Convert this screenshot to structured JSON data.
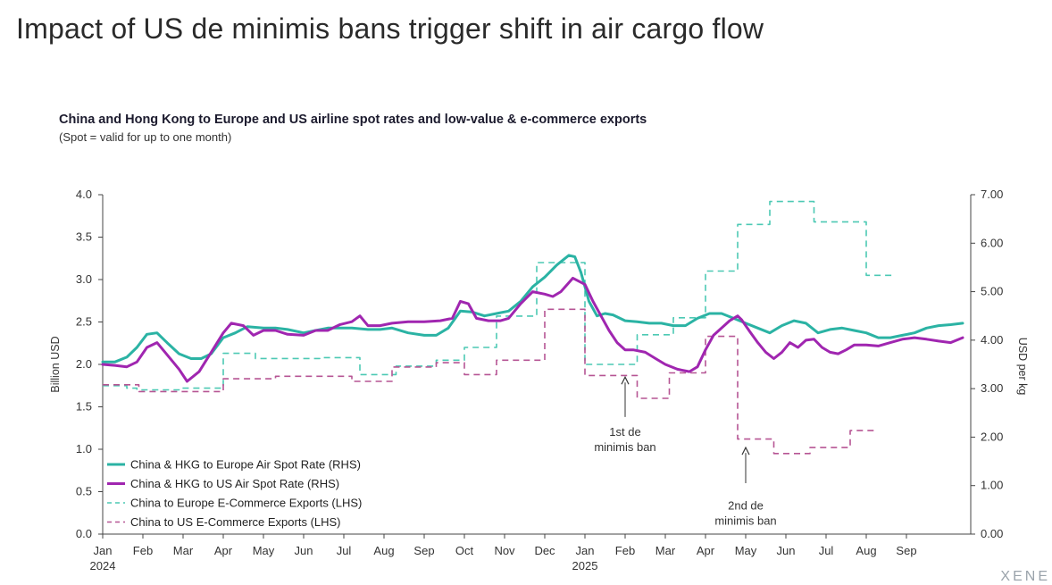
{
  "page_title": "Impact of US de minimis bans trigger shift in air cargo flow",
  "brand": "XENE",
  "chart_data": {
    "type": "line",
    "title": "China and Hong Kong to Europe and US airline spot rates and low-value & e-commerce exports",
    "subtitle": "(Spot = valid for up to one month)",
    "ylabel": "Billion USD",
    "y2label": "USD per kg",
    "ylim": [
      0,
      4.0
    ],
    "y2lim": [
      0,
      7.0
    ],
    "yticks": [
      "0.0",
      "0.5",
      "1.0",
      "1.5",
      "2.0",
      "2.5",
      "3.0",
      "3.5",
      "4.0"
    ],
    "y2ticks": [
      "0.00",
      "1.00",
      "2.00",
      "3.00",
      "4.00",
      "5.00",
      "6.00",
      "7.00"
    ],
    "xlim": [
      0,
      21.6
    ],
    "x_ticks": [
      {
        "label": "Jan",
        "year": "2024"
      },
      {
        "label": "Feb"
      },
      {
        "label": "Mar"
      },
      {
        "label": "Apr"
      },
      {
        "label": "May"
      },
      {
        "label": "Jun"
      },
      {
        "label": "Jul"
      },
      {
        "label": "Aug"
      },
      {
        "label": "Sep"
      },
      {
        "label": "Oct"
      },
      {
        "label": "Nov"
      },
      {
        "label": "Dec"
      },
      {
        "label": "Jan",
        "year": "2025"
      },
      {
        "label": "Feb"
      },
      {
        "label": "Mar"
      },
      {
        "label": "Apr"
      },
      {
        "label": "May"
      },
      {
        "label": "Jun"
      },
      {
        "label": "Jul"
      },
      {
        "label": "Aug"
      },
      {
        "label": "Sep"
      }
    ],
    "series": [
      {
        "name": "China & HKG to Europe Air Spot Rate (RHS)",
        "axis": "right",
        "color": "#2bb3a4",
        "style": "solid",
        "width": 3,
        "points": [
          [
            0,
            3.55
          ],
          [
            0.3,
            3.55
          ],
          [
            0.6,
            3.65
          ],
          [
            0.85,
            3.85
          ],
          [
            1.1,
            4.12
          ],
          [
            1.35,
            4.15
          ],
          [
            1.6,
            3.95
          ],
          [
            1.9,
            3.72
          ],
          [
            2.2,
            3.62
          ],
          [
            2.45,
            3.62
          ],
          [
            2.7,
            3.72
          ],
          [
            3,
            4.05
          ],
          [
            3.3,
            4.15
          ],
          [
            3.6,
            4.28
          ],
          [
            4,
            4.25
          ],
          [
            4.3,
            4.25
          ],
          [
            4.6,
            4.22
          ],
          [
            5,
            4.15
          ],
          [
            5.3,
            4.2
          ],
          [
            5.6,
            4.25
          ],
          [
            5.9,
            4.25
          ],
          [
            6.2,
            4.25
          ],
          [
            6.6,
            4.22
          ],
          [
            6.9,
            4.22
          ],
          [
            7.2,
            4.25
          ],
          [
            7.6,
            4.15
          ],
          [
            8,
            4.1
          ],
          [
            8.3,
            4.1
          ],
          [
            8.6,
            4.25
          ],
          [
            8.9,
            4.6
          ],
          [
            9.2,
            4.58
          ],
          [
            9.5,
            4.5
          ],
          [
            9.8,
            4.55
          ],
          [
            10.1,
            4.6
          ],
          [
            10.4,
            4.8
          ],
          [
            10.7,
            5.1
          ],
          [
            11,
            5.3
          ],
          [
            11.3,
            5.55
          ],
          [
            11.6,
            5.75
          ],
          [
            11.75,
            5.72
          ],
          [
            11.9,
            5.4
          ],
          [
            12.1,
            4.8
          ],
          [
            12.3,
            4.5
          ],
          [
            12.5,
            4.55
          ],
          [
            12.7,
            4.52
          ],
          [
            13,
            4.4
          ],
          [
            13.3,
            4.38
          ],
          [
            13.6,
            4.35
          ],
          [
            13.9,
            4.35
          ],
          [
            14.2,
            4.3
          ],
          [
            14.5,
            4.3
          ],
          [
            14.8,
            4.45
          ],
          [
            15.1,
            4.55
          ],
          [
            15.4,
            4.55
          ],
          [
            15.7,
            4.45
          ],
          [
            16,
            4.35
          ],
          [
            16.3,
            4.25
          ],
          [
            16.6,
            4.15
          ],
          [
            16.9,
            4.3
          ],
          [
            17.2,
            4.4
          ],
          [
            17.5,
            4.35
          ],
          [
            17.8,
            4.15
          ],
          [
            18.1,
            4.22
          ],
          [
            18.4,
            4.25
          ],
          [
            18.7,
            4.2
          ],
          [
            19,
            4.15
          ],
          [
            19.3,
            4.05
          ],
          [
            19.6,
            4.05
          ],
          [
            19.9,
            4.1
          ],
          [
            20.2,
            4.15
          ],
          [
            20.5,
            4.25
          ],
          [
            20.8,
            4.3
          ],
          [
            21.1,
            4.32
          ],
          [
            21.4,
            4.35
          ]
        ]
      },
      {
        "name": "China & HKG to US Air Spot Rate (RHS)",
        "axis": "right",
        "color": "#a026b0",
        "style": "solid",
        "width": 3,
        "points": [
          [
            0,
            3.5
          ],
          [
            0.3,
            3.48
          ],
          [
            0.6,
            3.45
          ],
          [
            0.85,
            3.55
          ],
          [
            1.1,
            3.85
          ],
          [
            1.35,
            3.95
          ],
          [
            1.6,
            3.7
          ],
          [
            1.9,
            3.4
          ],
          [
            2.1,
            3.15
          ],
          [
            2.4,
            3.35
          ],
          [
            2.7,
            3.75
          ],
          [
            3,
            4.15
          ],
          [
            3.2,
            4.35
          ],
          [
            3.5,
            4.3
          ],
          [
            3.75,
            4.1
          ],
          [
            4,
            4.2
          ],
          [
            4.3,
            4.2
          ],
          [
            4.6,
            4.12
          ],
          [
            5,
            4.1
          ],
          [
            5.3,
            4.2
          ],
          [
            5.6,
            4.2
          ],
          [
            5.9,
            4.32
          ],
          [
            6.2,
            4.38
          ],
          [
            6.4,
            4.5
          ],
          [
            6.6,
            4.3
          ],
          [
            6.9,
            4.3
          ],
          [
            7.2,
            4.35
          ],
          [
            7.6,
            4.38
          ],
          [
            8,
            4.38
          ],
          [
            8.4,
            4.4
          ],
          [
            8.7,
            4.45
          ],
          [
            8.9,
            4.8
          ],
          [
            9.1,
            4.75
          ],
          [
            9.3,
            4.45
          ],
          [
            9.6,
            4.4
          ],
          [
            9.9,
            4.4
          ],
          [
            10.1,
            4.45
          ],
          [
            10.4,
            4.75
          ],
          [
            10.7,
            5.0
          ],
          [
            11,
            4.95
          ],
          [
            11.2,
            4.9
          ],
          [
            11.4,
            5.0
          ],
          [
            11.7,
            5.28
          ],
          [
            12,
            5.15
          ],
          [
            12.2,
            4.8
          ],
          [
            12.4,
            4.5
          ],
          [
            12.6,
            4.2
          ],
          [
            12.8,
            3.95
          ],
          [
            13,
            3.8
          ],
          [
            13.2,
            3.8
          ],
          [
            13.5,
            3.75
          ],
          [
            13.8,
            3.6
          ],
          [
            14,
            3.5
          ],
          [
            14.3,
            3.4
          ],
          [
            14.6,
            3.35
          ],
          [
            14.8,
            3.45
          ],
          [
            15,
            3.8
          ],
          [
            15.2,
            4.1
          ],
          [
            15.4,
            4.25
          ],
          [
            15.6,
            4.4
          ],
          [
            15.8,
            4.5
          ],
          [
            15.9,
            4.42
          ],
          [
            16.1,
            4.18
          ],
          [
            16.3,
            3.95
          ],
          [
            16.5,
            3.75
          ],
          [
            16.7,
            3.62
          ],
          [
            16.9,
            3.75
          ],
          [
            17.1,
            3.95
          ],
          [
            17.3,
            3.85
          ],
          [
            17.5,
            4.0
          ],
          [
            17.7,
            4.02
          ],
          [
            17.9,
            3.85
          ],
          [
            18.1,
            3.75
          ],
          [
            18.3,
            3.72
          ],
          [
            18.5,
            3.8
          ],
          [
            18.7,
            3.9
          ],
          [
            19,
            3.9
          ],
          [
            19.3,
            3.88
          ],
          [
            19.6,
            3.95
          ],
          [
            19.9,
            4.02
          ],
          [
            20.2,
            4.05
          ],
          [
            20.5,
            4.02
          ],
          [
            20.8,
            3.98
          ],
          [
            21.1,
            3.95
          ],
          [
            21.4,
            4.05
          ]
        ]
      },
      {
        "name": "China to Europe E-Commerce Exports (LHS)",
        "axis": "left",
        "color": "#4cc9b4",
        "style": "dashed",
        "width": 1.6,
        "points": [
          [
            0,
            1.75
          ],
          [
            0.6,
            1.75
          ],
          [
            0.6,
            1.72
          ],
          [
            0.85,
            1.72
          ],
          [
            0.85,
            1.7
          ],
          [
            1.9,
            1.7
          ],
          [
            1.9,
            1.72
          ],
          [
            3,
            1.72
          ],
          [
            3,
            2.13
          ],
          [
            3.8,
            2.13
          ],
          [
            3.8,
            2.07
          ],
          [
            5.4,
            2.07
          ],
          [
            5.4,
            2.08
          ],
          [
            6.4,
            2.08
          ],
          [
            6.4,
            1.88
          ],
          [
            7.3,
            1.88
          ],
          [
            7.3,
            1.98
          ],
          [
            8.3,
            1.98
          ],
          [
            8.3,
            2.05
          ],
          [
            9,
            2.05
          ],
          [
            9,
            2.2
          ],
          [
            9.8,
            2.2
          ],
          [
            9.8,
            2.57
          ],
          [
            10.8,
            2.57
          ],
          [
            10.8,
            3.2
          ],
          [
            12,
            3.2
          ],
          [
            12,
            2.0
          ],
          [
            13.3,
            2.0
          ],
          [
            13.3,
            2.35
          ],
          [
            14.2,
            2.35
          ],
          [
            14.2,
            2.55
          ],
          [
            15,
            2.55
          ],
          [
            15,
            3.1
          ],
          [
            15.8,
            3.1
          ],
          [
            15.8,
            3.65
          ],
          [
            16.6,
            3.65
          ],
          [
            16.6,
            3.92
          ],
          [
            17.7,
            3.92
          ],
          [
            17.7,
            3.68
          ],
          [
            19,
            3.68
          ],
          [
            19,
            3.05
          ],
          [
            19.7,
            3.05
          ]
        ]
      },
      {
        "name": "China to US E-Commerce Exports (LHS)",
        "axis": "left",
        "color": "#b65594",
        "style": "dashed",
        "width": 1.6,
        "points": [
          [
            0,
            1.76
          ],
          [
            0.9,
            1.76
          ],
          [
            0.9,
            1.68
          ],
          [
            3,
            1.68
          ],
          [
            3,
            1.83
          ],
          [
            4.3,
            1.83
          ],
          [
            4.3,
            1.86
          ],
          [
            6.2,
            1.86
          ],
          [
            6.2,
            1.8
          ],
          [
            7.2,
            1.8
          ],
          [
            7.2,
            1.97
          ],
          [
            8.3,
            1.97
          ],
          [
            8.3,
            2.02
          ],
          [
            9,
            2.02
          ],
          [
            9,
            1.88
          ],
          [
            9.8,
            1.88
          ],
          [
            9.8,
            2.05
          ],
          [
            11,
            2.05
          ],
          [
            11,
            2.65
          ],
          [
            12,
            2.65
          ],
          [
            12,
            1.87
          ],
          [
            13.3,
            1.87
          ],
          [
            13.3,
            1.6
          ],
          [
            14.1,
            1.6
          ],
          [
            14.1,
            1.9
          ],
          [
            15,
            1.9
          ],
          [
            15,
            2.33
          ],
          [
            15.8,
            2.33
          ],
          [
            15.8,
            1.12
          ],
          [
            16.7,
            1.12
          ],
          [
            16.7,
            0.95
          ],
          [
            17.6,
            0.95
          ],
          [
            17.6,
            1.02
          ],
          [
            18.6,
            1.02
          ],
          [
            18.6,
            1.22
          ],
          [
            19.2,
            1.22
          ]
        ]
      }
    ],
    "annotations": [
      {
        "lines": [
          "1st de",
          "minimis ban"
        ],
        "x": 13,
        "y": 1.35
      },
      {
        "lines": [
          "2nd de",
          "minimis ban"
        ],
        "x": 16,
        "y": 0.48
      }
    ],
    "legend": {
      "placement": "bottom-left",
      "entries": [
        "China & HKG to Europe Air Spot Rate (RHS)",
        "China & HKG to US Air Spot Rate (RHS)",
        "China to Europe E-Commerce Exports (LHS)",
        "China to US E-Commerce Exports (LHS)"
      ]
    }
  }
}
